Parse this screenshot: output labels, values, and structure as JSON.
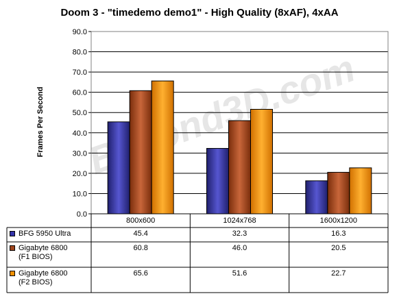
{
  "chart_data": {
    "type": "bar",
    "title": "Doom 3 - \"timedemo demo1\" - High Quality (8xAF), 4xAA",
    "xlabel": "",
    "ylabel": "Frames Per Second",
    "ylim": [
      0,
      90
    ],
    "yticks": [
      "0.0",
      "10.0",
      "20.0",
      "30.0",
      "40.0",
      "50.0",
      "60.0",
      "70.0",
      "80.0",
      "90.0"
    ],
    "grid": true,
    "legend": "table-below",
    "categories": [
      "800x600",
      "1024x768",
      "1600x1200"
    ],
    "series": [
      {
        "name": "BFG 5950 Ultra",
        "name_lines": [
          "BFG 5950 Ultra"
        ],
        "values": [
          45.4,
          32.3,
          16.3
        ],
        "display": [
          "45.4",
          "32.3",
          "16.3"
        ],
        "color": "#3333aa"
      },
      {
        "name": "Gigabyte 6800 (F1 BIOS)",
        "name_lines": [
          "Gigabyte 6800",
          "(F1 BIOS)"
        ],
        "values": [
          60.8,
          46.0,
          20.5
        ],
        "display": [
          "60.8",
          "46.0",
          "20.5"
        ],
        "color": "#a0461e"
      },
      {
        "name": "Gigabyte 6800 (F2 BIOS)",
        "name_lines": [
          "Gigabyte 6800",
          "(F2 BIOS)"
        ],
        "values": [
          65.6,
          51.6,
          22.7
        ],
        "display": [
          "65.6",
          "51.6",
          "22.7"
        ],
        "color": "#f09000"
      }
    ]
  },
  "watermark": "Beyond3D.com"
}
